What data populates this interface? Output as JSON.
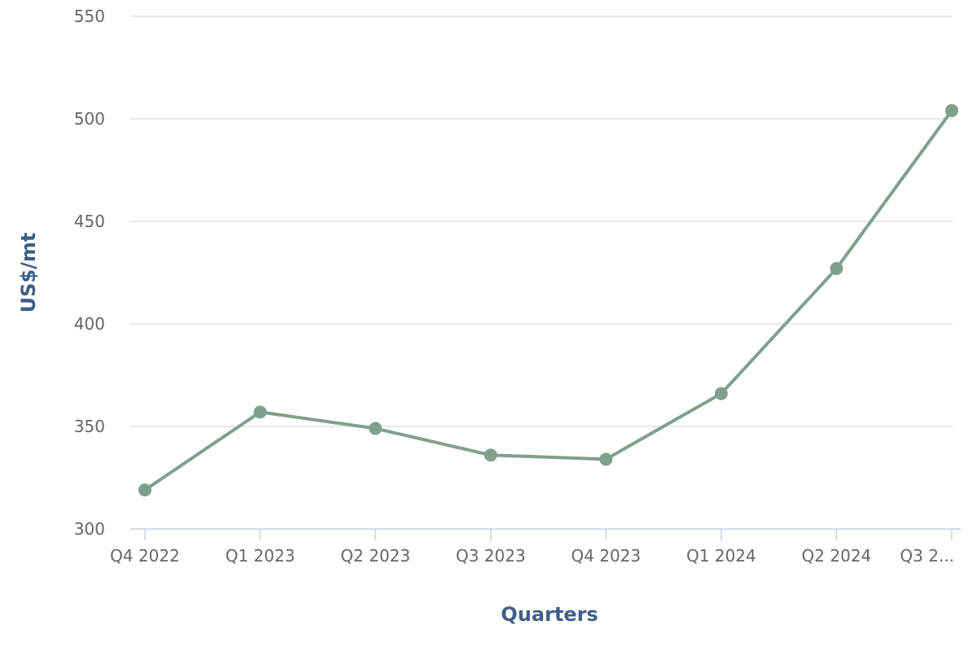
{
  "chart_data": {
    "type": "line",
    "title": "",
    "xlabel": "Quarters",
    "ylabel": "US$/mt",
    "categories": [
      "Q4 2022",
      "Q1 2023",
      "Q2 2023",
      "Q3 2023",
      "Q4 2023",
      "Q1 2024",
      "Q2 2024",
      "Q3 2..."
    ],
    "series": [
      {
        "values": [
          319,
          357,
          349,
          336,
          334,
          366,
          427,
          504
        ],
        "color": "#7fa08f"
      }
    ],
    "ylim": [
      300,
      550
    ],
    "yticks": [
      300,
      350,
      400,
      450,
      500,
      550
    ],
    "grid": true,
    "legend": "none"
  }
}
